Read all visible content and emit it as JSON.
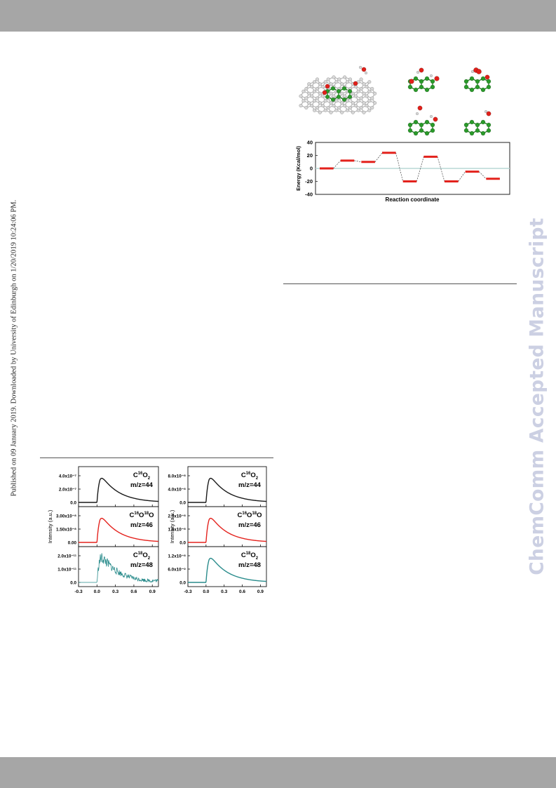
{
  "page": {
    "side_note": "Published on 09 January 2019. Downloaded by University of Edinburgh on 1/20/2019 10:24:06 PM.",
    "watermark": "ChemComm Accepted Manuscript"
  },
  "colors": {
    "bar_gray": "#a6a6a6",
    "carbon_green": "#2a9a2a",
    "oxygen_red": "#e0201a",
    "hydrogen_gray": "#d8d8d8",
    "trace_black": "#1a1a1a",
    "trace_red": "#e4231e",
    "trace_teal": "#2a8c8c"
  },
  "molecule_figure": {
    "panels": [
      "graphene-sheet-with-water",
      "cluster-1",
      "cluster-2",
      "cluster-3",
      "cluster-4"
    ]
  },
  "chart_data": [
    {
      "type": "line",
      "xlabel": "Reaction coordinate",
      "ylabel": "Energy (Kcal/mol)",
      "ylim": [
        -40,
        40
      ],
      "yticks": [
        "40",
        "20",
        "0",
        "-20",
        "-40"
      ],
      "yticks_values": [
        40,
        20,
        0,
        -20,
        -40
      ],
      "levels": [
        0,
        12,
        10,
        24,
        -20,
        18,
        -20,
        -5,
        -16
      ],
      "zero_line": true
    },
    {
      "type": "line",
      "ylabel": "Intensity (a.u.)",
      "xticks": [
        "-0.3",
        "0.0",
        "0.3",
        "0.6",
        "0.9"
      ],
      "panels": [
        {
          "species": "C",
          "sup": "16",
          "sub": "O",
          "subsup": "2",
          "mz": "m/z=44",
          "yticks": [
            "4.0x10⁻⁷",
            "2.0x10⁻⁷",
            "0.0"
          ],
          "color": "trace_black",
          "peak": 1.0,
          "noisy": false
        },
        {
          "species": "C",
          "sup": "16",
          "mid": "O",
          "sup2": "18",
          "tail": "O",
          "mz": "m/z=46",
          "yticks": [
            "3.00x10⁻⁸",
            "1.50x10⁻⁸",
            "0.00"
          ],
          "color": "trace_red",
          "peak": 1.0,
          "noisy": false
        },
        {
          "species": "C",
          "sup": "18",
          "sub": "O",
          "subsup": "2",
          "mz": "m/z=48",
          "yticks": [
            "2.0x10⁻¹¹",
            "1.0x10⁻¹¹",
            "0.0"
          ],
          "color": "trace_teal",
          "peak": 1.0,
          "noisy": true
        }
      ]
    },
    {
      "type": "line",
      "ylabel": "Intensity (a.u.)",
      "xticks": [
        "-0.3",
        "0.0",
        "0.3",
        "0.6",
        "0.9"
      ],
      "panels": [
        {
          "species": "C",
          "sup": "16",
          "sub": "O",
          "subsup": "2",
          "mz": "m/z=44",
          "yticks": [
            "8.0x10⁻⁸",
            "4.0x10⁻⁸",
            "0.0"
          ],
          "color": "trace_black",
          "peak": 1.0,
          "noisy": false
        },
        {
          "species": "C",
          "sup": "16",
          "mid": "O",
          "sup2": "18",
          "tail": "O",
          "mz": "m/z=46",
          "yticks": [
            "2.0x10⁻⁸",
            "1.0x10⁻⁸",
            "0.0"
          ],
          "color": "trace_red",
          "peak": 1.0,
          "noisy": false
        },
        {
          "species": "C",
          "sup": "18",
          "sub": "O",
          "subsup": "2",
          "mz": "m/z=48",
          "yticks": [
            "1.2x10⁻⁸",
            "6.0x10⁻⁹",
            "0.0"
          ],
          "color": "trace_teal",
          "peak": 1.0,
          "noisy": false
        }
      ]
    }
  ]
}
